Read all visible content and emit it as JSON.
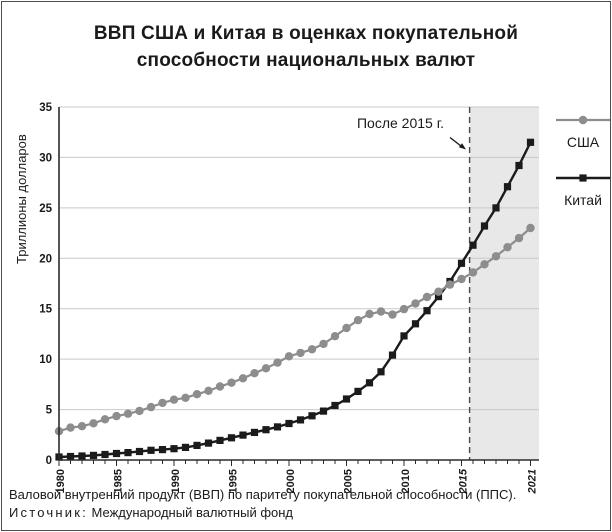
{
  "title": {
    "line1": "ВВП США и Китая в оценках покупательной",
    "line2": "способности национальных валют"
  },
  "legend": {
    "usa_label": "США",
    "china_label": "Китай"
  },
  "annotation": {
    "text": "После 2015 г."
  },
  "footer": {
    "line1": "Валовой внутренний продукт (ВВП) по паритету покупательной способности (ППС).",
    "source_label": "Источник:",
    "source_text": " Международный валютный фонд"
  },
  "chart_data": {
    "type": "line",
    "title": "ВВП США и Китая в оценках покупательной способности национальных валют",
    "xlabel": "",
    "ylabel": "Триллионы долларов",
    "ylim": [
      0,
      35
    ],
    "ytick_step": 5,
    "grid": true,
    "legend_position": "right",
    "x": [
      1980,
      1981,
      1982,
      1983,
      1984,
      1985,
      1986,
      1987,
      1988,
      1989,
      1990,
      1991,
      1992,
      1993,
      1994,
      1995,
      1996,
      1997,
      1998,
      1999,
      2000,
      2001,
      2002,
      2003,
      2004,
      2005,
      2006,
      2007,
      2008,
      2009,
      2010,
      2011,
      2012,
      2013,
      2014,
      2015,
      2016,
      2017,
      2018,
      2019,
      2020,
      2021
    ],
    "xtick_labels": [
      {
        "text": "1980",
        "year": 1980,
        "italic": false
      },
      {
        "text": "1985",
        "year": 1985,
        "italic": false
      },
      {
        "text": "1990",
        "year": 1990,
        "italic": false
      },
      {
        "text": "1995",
        "year": 1995,
        "italic": false
      },
      {
        "text": "2000",
        "year": 2000,
        "italic": false
      },
      {
        "text": "2005",
        "year": 2005,
        "italic": false
      },
      {
        "text": "2010",
        "year": 2010,
        "italic": false
      },
      {
        "text": "2015",
        "year": 2015,
        "italic": true
      },
      {
        "text": "2021",
        "year": 2021,
        "italic": true
      }
    ],
    "forecast_region": {
      "label": "После 2015 г.",
      "start_year": 2015.7,
      "shade_color": "#e8e8e8",
      "divider_color": "#4a4a4a"
    },
    "series": [
      {
        "name": "США",
        "color": "#8d8d8d",
        "marker": "circle",
        "values": [
          2.86,
          3.21,
          3.35,
          3.64,
          4.04,
          4.35,
          4.59,
          4.87,
          5.25,
          5.66,
          5.98,
          6.17,
          6.52,
          6.86,
          7.29,
          7.66,
          8.1,
          8.61,
          9.09,
          9.66,
          10.28,
          10.62,
          10.98,
          11.51,
          12.27,
          13.09,
          13.86,
          14.48,
          14.72,
          14.42,
          14.96,
          15.52,
          16.16,
          16.69,
          17.39,
          17.95,
          18.6,
          19.4,
          20.2,
          21.1,
          22.0,
          23.0
        ]
      },
      {
        "name": "Китай",
        "color": "#1b1b1b",
        "marker": "square",
        "values": [
          0.3,
          0.35,
          0.4,
          0.46,
          0.55,
          0.64,
          0.73,
          0.84,
          0.96,
          1.03,
          1.12,
          1.25,
          1.45,
          1.68,
          1.94,
          2.2,
          2.47,
          2.74,
          3.0,
          3.28,
          3.62,
          3.98,
          4.38,
          4.85,
          5.4,
          6.05,
          6.8,
          7.65,
          8.75,
          10.4,
          12.3,
          13.5,
          14.8,
          16.2,
          17.7,
          19.5,
          21.3,
          23.2,
          25.0,
          27.1,
          29.2,
          31.5
        ]
      }
    ],
    "axis_color": "#2b2b2b",
    "gridline_color": "#c9c9c9",
    "text_color": "#1a1a1a"
  }
}
